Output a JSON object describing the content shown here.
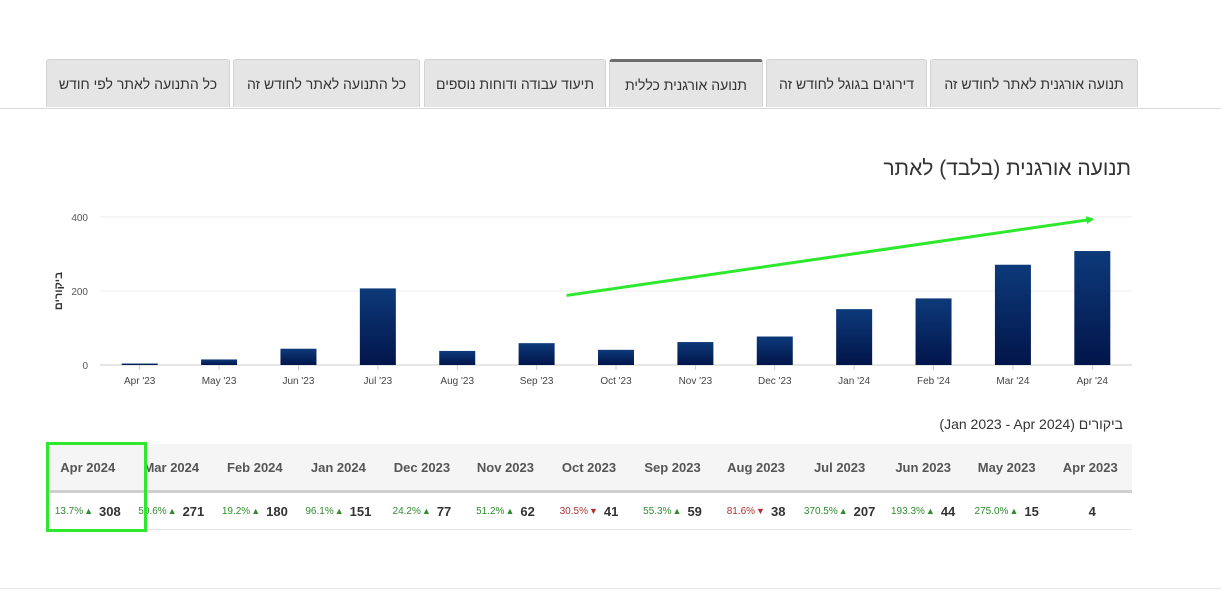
{
  "tabs": [
    {
      "label": "תנועה אורגנית לאתר לחודש זה",
      "active": false
    },
    {
      "label": "דירוגים בגוגל לחודש זה",
      "active": false
    },
    {
      "label": "תנועה אורגנית כללית",
      "active": true
    },
    {
      "label": "תיעוד עבודה ודוחות נוספים",
      "active": false
    },
    {
      "label": "כל התנועה לאתר לחודש זה",
      "active": false
    },
    {
      "label": "כל התנועה לאתר לפי חודש",
      "active": false
    }
  ],
  "chart_data": {
    "type": "bar",
    "title": "תנועה אורגנית (בלבד) לאתר",
    "ylabel": "ביקורים",
    "xlabel": "",
    "categories": [
      "Apr '23",
      "May '23",
      "Jun '23",
      "Jul '23",
      "Aug '23",
      "Sep '23",
      "Oct '23",
      "Nov '23",
      "Dec '23",
      "Jan '24",
      "Feb '24",
      "Mar '24",
      "Apr '24"
    ],
    "values": [
      4,
      15,
      44,
      207,
      38,
      59,
      41,
      62,
      77,
      151,
      180,
      271,
      308
    ],
    "ylim": [
      0,
      400
    ],
    "yticks": [
      0,
      200,
      400
    ],
    "grid": true,
    "legend": "none",
    "bar_color_top": "#0d3a7a",
    "bar_color_bottom": "#02154a",
    "annotation": {
      "type": "arrow",
      "color": "#2ee82e",
      "from": {
        "category": "Sep '23",
        "value": 188
      },
      "to": {
        "category": "Apr '24",
        "value": 394
      }
    }
  },
  "table": {
    "title": "ביקורים (Jan 2023 - Apr 2024)",
    "highlight_color": "#2ee82e",
    "columns": [
      {
        "label": "Apr 2024",
        "value": "308",
        "change": "13.7%",
        "dir": "up"
      },
      {
        "label": "Mar 2024",
        "value": "271",
        "change": "50.6%",
        "dir": "up"
      },
      {
        "label": "Feb 2024",
        "value": "180",
        "change": "19.2%",
        "dir": "up"
      },
      {
        "label": "Jan 2024",
        "value": "151",
        "change": "96.1%",
        "dir": "up"
      },
      {
        "label": "Dec 2023",
        "value": "77",
        "change": "24.2%",
        "dir": "up"
      },
      {
        "label": "Nov 2023",
        "value": "62",
        "change": "51.2%",
        "dir": "up"
      },
      {
        "label": "Oct 2023",
        "value": "41",
        "change": "30.5%",
        "dir": "down"
      },
      {
        "label": "Sep 2023",
        "value": "59",
        "change": "55.3%",
        "dir": "up"
      },
      {
        "label": "Aug 2023",
        "value": "38",
        "change": "81.6%",
        "dir": "down"
      },
      {
        "label": "Jul 2023",
        "value": "207",
        "change": "370.5%",
        "dir": "up"
      },
      {
        "label": "Jun 2023",
        "value": "44",
        "change": "193.3%",
        "dir": "up"
      },
      {
        "label": "May 2023",
        "value": "15",
        "change": "275.0%",
        "dir": "up"
      },
      {
        "label": "Apr 2023",
        "value": "4",
        "change": "",
        "dir": ""
      }
    ]
  }
}
